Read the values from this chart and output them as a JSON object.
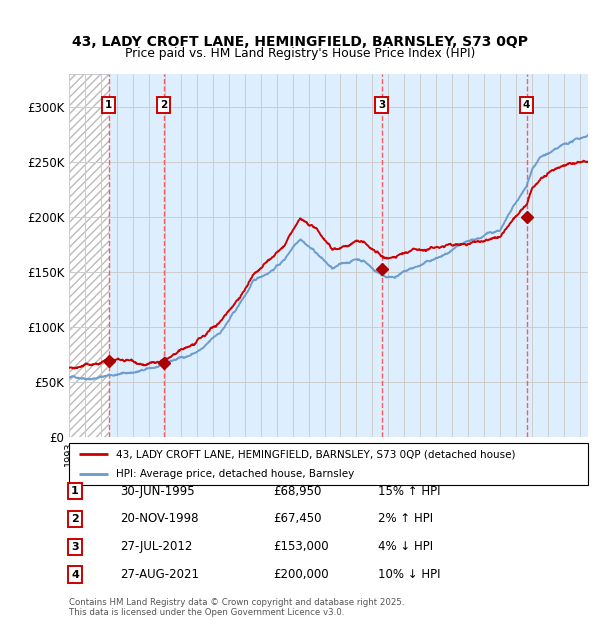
{
  "title1": "43, LADY CROFT LANE, HEMINGFIELD, BARNSLEY, S73 0QP",
  "title2": "Price paid vs. HM Land Registry's House Price Index (HPI)",
  "legend_line1": "43, LADY CROFT LANE, HEMINGFIELD, BARNSLEY, S73 0QP (detached house)",
  "legend_line2": "HPI: Average price, detached house, Barnsley",
  "footer1": "Contains HM Land Registry data © Crown copyright and database right 2025.",
  "footer2": "This data is licensed under the Open Government Licence v3.0.",
  "sales": [
    {
      "num": 1,
      "date_str": "30-JUN-1995",
      "price": 68950,
      "pct": "15%",
      "dir": "↑",
      "year": 1995.5
    },
    {
      "num": 2,
      "date_str": "20-NOV-1998",
      "price": 67450,
      "pct": "2%",
      "dir": "↑",
      "year": 1998.92
    },
    {
      "num": 3,
      "date_str": "27-JUL-2012",
      "price": 153000,
      "pct": "4%",
      "dir": "↓",
      "year": 2012.57
    },
    {
      "num": 4,
      "date_str": "27-AUG-2021",
      "price": 200000,
      "pct": "10%",
      "dir": "↓",
      "year": 2021.65
    }
  ],
  "red_line_color": "#cc0000",
  "blue_line_color": "#6699cc",
  "dot_color": "#aa0000",
  "bg_light_blue": "#ddeeff",
  "grid_color": "#cccccc",
  "dashed_color": "#ff4444",
  "ylim": [
    0,
    330000
  ],
  "yticks": [
    0,
    50000,
    100000,
    150000,
    200000,
    250000,
    300000
  ],
  "ytick_labels": [
    "£0",
    "£50K",
    "£100K",
    "£150K",
    "£200K",
    "£250K",
    "£300K"
  ],
  "xstart": 1993.0,
  "xend": 2025.5,
  "hpi_anchors_x": [
    1993.0,
    1994.0,
    1995.0,
    1995.5,
    1996.0,
    1997.0,
    1998.0,
    1998.92,
    1999.5,
    2000.5,
    2001.5,
    2002.5,
    2003.5,
    2004.5,
    2005.5,
    2006.5,
    2007.0,
    2007.5,
    2008.5,
    2009.5,
    2010.5,
    2011.0,
    2011.5,
    2012.0,
    2012.57,
    2013.0,
    2013.5,
    2014.0,
    2015.0,
    2016.0,
    2017.0,
    2018.0,
    2019.0,
    2020.0,
    2021.0,
    2021.65,
    2022.0,
    2022.5,
    2023.0,
    2023.5,
    2024.0,
    2024.5,
    2025.0,
    2025.5
  ],
  "hpi_anchors_y": [
    54000,
    55000,
    57000,
    59000,
    60000,
    62000,
    64000,
    67000,
    70000,
    75000,
    82000,
    95000,
    115000,
    138000,
    148000,
    160000,
    172000,
    182000,
    170000,
    155000,
    160000,
    163000,
    162000,
    155000,
    150000,
    148000,
    150000,
    153000,
    158000,
    163000,
    168000,
    172000,
    177000,
    183000,
    205000,
    218000,
    235000,
    245000,
    248000,
    250000,
    253000,
    256000,
    258000,
    262000
  ]
}
